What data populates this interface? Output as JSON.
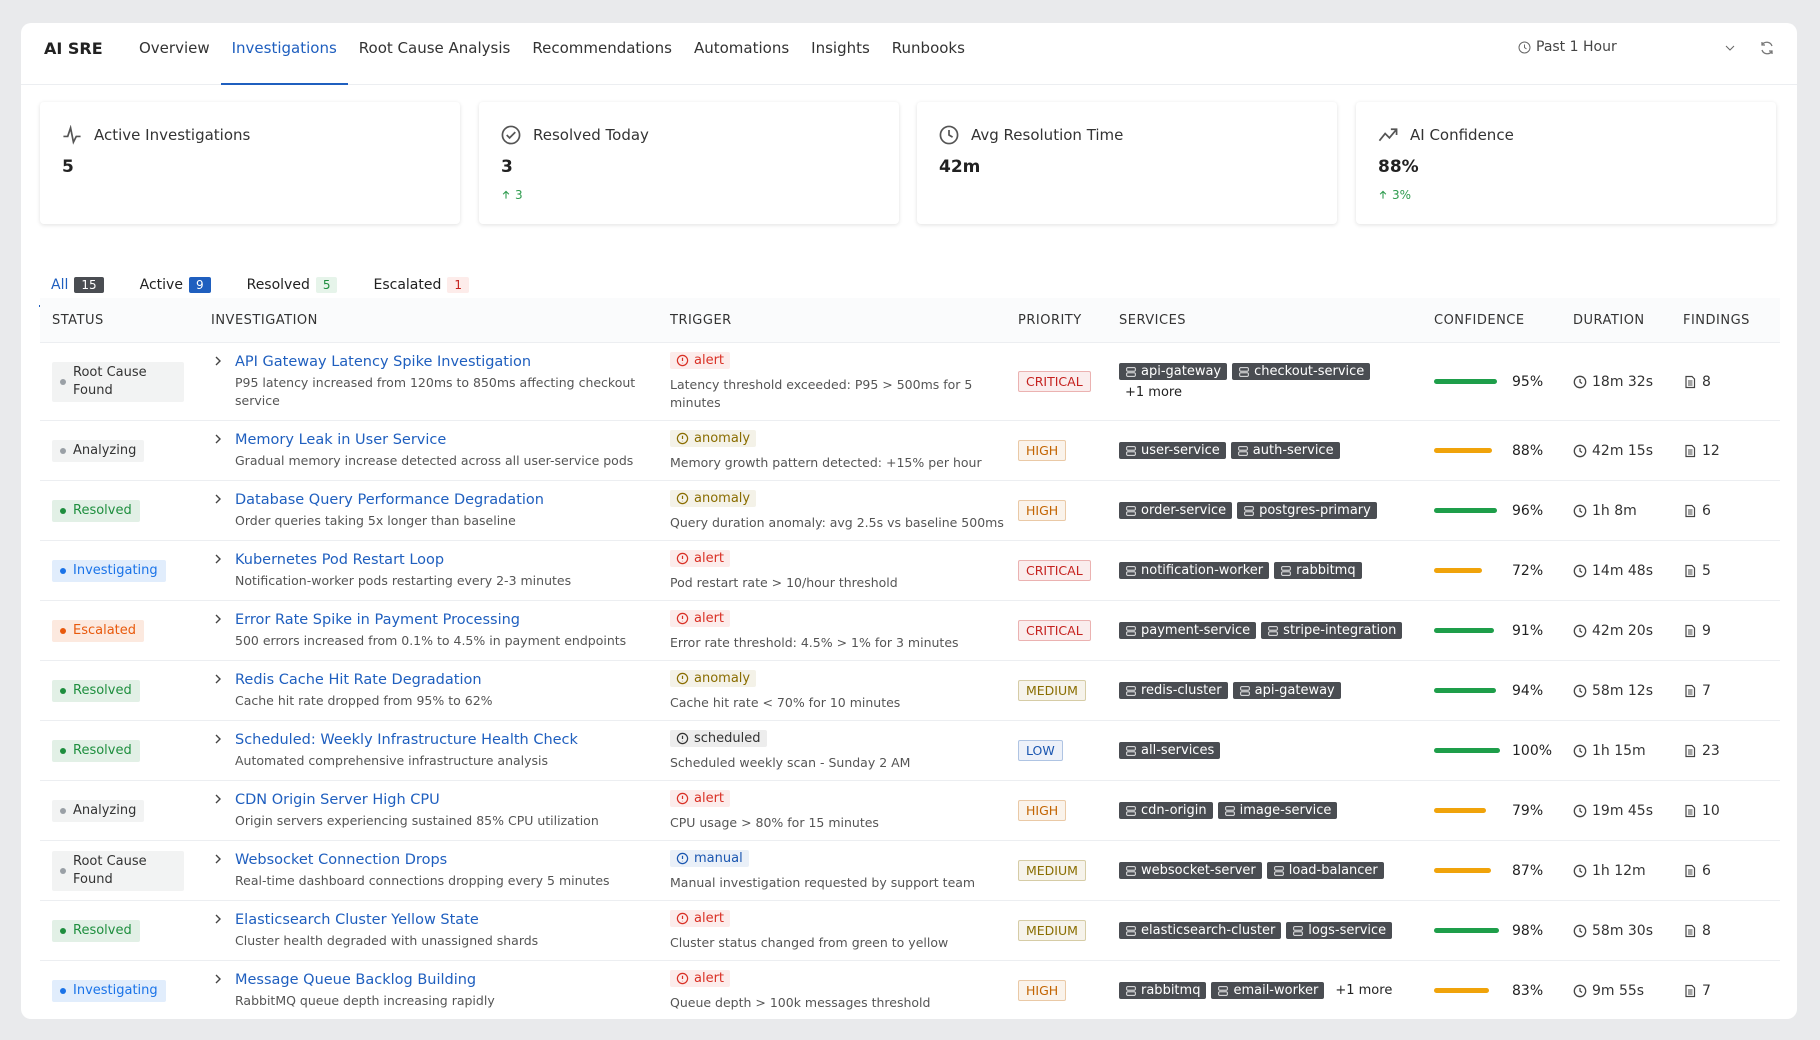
{
  "nav": {
    "brand": "AI SRE",
    "tabs": [
      "Overview",
      "Investigations",
      "Root Cause Analysis",
      "Recommendations",
      "Automations",
      "Insights",
      "Runbooks"
    ],
    "time_range": "Past 1 Hour"
  },
  "stats": [
    {
      "label": "Active Investigations",
      "value": "5"
    },
    {
      "label": "Resolved Today",
      "value": "3",
      "delta": "3"
    },
    {
      "label": "Avg Resolution Time",
      "value": "42m"
    },
    {
      "label": "AI Confidence",
      "value": "88%",
      "delta": "3%"
    }
  ],
  "filters": [
    {
      "label": "All",
      "count": 15
    },
    {
      "label": "Active",
      "count": 9
    },
    {
      "label": "Resolved",
      "count": 5
    },
    {
      "label": "Escalated",
      "count": 1
    }
  ],
  "table": {
    "columns": [
      "STATUS",
      "INVESTIGATION",
      "TRIGGER",
      "PRIORITY",
      "SERVICES",
      "CONFIDENCE",
      "DURATION",
      "FINDINGS"
    ],
    "rows": [
      {
        "status": "Root Cause Found",
        "status_color": "#9aa0a6",
        "title": "API Gateway Latency Spike Investigation",
        "description": "P95 latency increased from 120ms to 850ms affecting checkout service",
        "trigger": "alert",
        "trigger_color": "#d93025",
        "trigger_text": "Latency threshold exceeded: P95 > 500ms for 5 minutes",
        "priority": "CRITICAL",
        "priority_color": "#c5221f",
        "services": [
          "api-gateway",
          "checkout-service"
        ],
        "more": "+1 more",
        "confidence": {
          "value": 95,
          "label": "95%"
        },
        "bar_color": "#1e9e4a",
        "duration": "18m 32s",
        "findings": 8
      },
      {
        "status": "Analyzing",
        "status_color": "#9aa0a6",
        "title": "Memory Leak in User Service",
        "description": "Gradual memory increase detected across all user-service pods",
        "trigger": "anomaly",
        "trigger_color": "#8a6d00",
        "trigger_text": "Memory growth pattern detected: +15% per hour",
        "priority": "HIGH",
        "priority_color": "#c26401",
        "services": [
          "user-service",
          "auth-service"
        ],
        "confidence": {
          "value": 88,
          "label": "88%"
        },
        "bar_color": "#f0a30a",
        "duration": "42m 15s",
        "findings": 12
      },
      {
        "status": "Resolved",
        "status_color": "#1e8e3e",
        "title": "Database Query Performance Degradation",
        "description": "Order queries taking 5x longer than baseline",
        "trigger": "anomaly",
        "trigger_color": "#8a6d00",
        "trigger_text": "Query duration anomaly: avg 2.5s vs baseline 500ms",
        "priority": "HIGH",
        "priority_color": "#c26401",
        "services": [
          "order-service",
          "postgres-primary"
        ],
        "confidence": {
          "value": 96,
          "label": "96%"
        },
        "bar_color": "#1e9e4a",
        "duration": "1h 8m",
        "findings": 6
      },
      {
        "status": "Investigating",
        "status_color": "#1a73e8",
        "title": "Kubernetes Pod Restart Loop",
        "description": "Notification-worker pods restarting every 2-3 minutes",
        "trigger": "alert",
        "trigger_color": "#d93025",
        "trigger_text": "Pod restart rate > 10/hour threshold",
        "priority": "CRITICAL",
        "priority_color": "#c5221f",
        "services": [
          "notification-worker",
          "rabbitmq"
        ],
        "confidence": {
          "value": 72,
          "label": "72%"
        },
        "bar_color": "#f0a30a",
        "duration": "14m 48s",
        "findings": 5
      },
      {
        "status": "Escalated",
        "status_color": "#e8590c",
        "title": "Error Rate Spike in Payment Processing",
        "description": "500 errors increased from 0.1% to 4.5% in payment endpoints",
        "trigger": "alert",
        "trigger_color": "#d93025",
        "trigger_text": "Error rate threshold: 4.5% > 1% for 3 minutes",
        "priority": "CRITICAL",
        "priority_color": "#c5221f",
        "services": [
          "payment-service",
          "stripe-integration"
        ],
        "confidence": {
          "value": 91,
          "label": "91%"
        },
        "bar_color": "#1e9e4a",
        "duration": "42m 20s",
        "findings": 9
      },
      {
        "status": "Resolved",
        "status_color": "#1e8e3e",
        "title": "Redis Cache Hit Rate Degradation",
        "description": "Cache hit rate dropped from 95% to 62%",
        "trigger": "anomaly",
        "trigger_color": "#8a6d00",
        "trigger_text": "Cache hit rate < 70% for 10 minutes",
        "priority": "MEDIUM",
        "priority_color": "#8a6d00",
        "services": [
          "redis-cluster",
          "api-gateway"
        ],
        "confidence": {
          "value": 94,
          "label": "94%"
        },
        "bar_color": "#1e9e4a",
        "duration": "58m 12s",
        "findings": 7
      },
      {
        "status": "Resolved",
        "status_color": "#1e8e3e",
        "title": "Scheduled: Weekly Infrastructure Health Check",
        "description": "Automated comprehensive infrastructure analysis",
        "trigger": "scheduled",
        "trigger_color": "#333333",
        "trigger_text": "Scheduled weekly scan - Sunday 2 AM",
        "priority": "LOW",
        "priority_color": "#1a56b0",
        "services": [
          "all-services"
        ],
        "confidence": {
          "value": 100,
          "label": "100%"
        },
        "bar_color": "#1e9e4a",
        "duration": "1h 15m",
        "findings": 23
      },
      {
        "status": "Analyzing",
        "status_color": "#9aa0a6",
        "title": "CDN Origin Server High CPU",
        "description": "Origin servers experiencing sustained 85% CPU utilization",
        "trigger": "alert",
        "trigger_color": "#d93025",
        "trigger_text": "CPU usage > 80% for 15 minutes",
        "priority": "HIGH",
        "priority_color": "#c26401",
        "services": [
          "cdn-origin",
          "image-service"
        ],
        "confidence": {
          "value": 79,
          "label": "79%"
        },
        "bar_color": "#f0a30a",
        "duration": "19m 45s",
        "findings": 10
      },
      {
        "status": "Root Cause Found",
        "status_color": "#9aa0a6",
        "title": "Websocket Connection Drops",
        "description": "Real-time dashboard connections dropping every 5 minutes",
        "trigger": "manual",
        "trigger_color": "#1a56b0",
        "trigger_text": "Manual investigation requested by support team",
        "priority": "MEDIUM",
        "priority_color": "#8a6d00",
        "services": [
          "websocket-server",
          "load-balancer"
        ],
        "confidence": {
          "value": 87,
          "label": "87%"
        },
        "bar_color": "#f0a30a",
        "duration": "1h 12m",
        "findings": 6
      },
      {
        "status": "Resolved",
        "status_color": "#1e8e3e",
        "title": "Elasticsearch Cluster Yellow State",
        "description": "Cluster health degraded with unassigned shards",
        "trigger": "alert",
        "trigger_color": "#d93025",
        "trigger_text": "Cluster status changed from green to yellow",
        "priority": "MEDIUM",
        "priority_color": "#8a6d00",
        "services": [
          "elasticsearch-cluster",
          "logs-service"
        ],
        "confidence": {
          "value": 98,
          "label": "98%"
        },
        "bar_color": "#1e9e4a",
        "duration": "58m 30s",
        "findings": 8
      },
      {
        "status": "Investigating",
        "status_color": "#1a73e8",
        "title": "Message Queue Backlog Building",
        "description": "RabbitMQ queue depth increasing rapidly",
        "trigger": "alert",
        "trigger_color": "#d93025",
        "trigger_text": "Queue depth > 100k messages threshold",
        "priority": "HIGH",
        "priority_color": "#c26401",
        "services": [
          "rabbitmq",
          "email-worker"
        ],
        "more": "+1 more",
        "confidence": {
          "value": 83,
          "label": "83%"
        },
        "bar_color": "#f0a30a",
        "duration": "9m 55s",
        "findings": 7
      }
    ]
  }
}
